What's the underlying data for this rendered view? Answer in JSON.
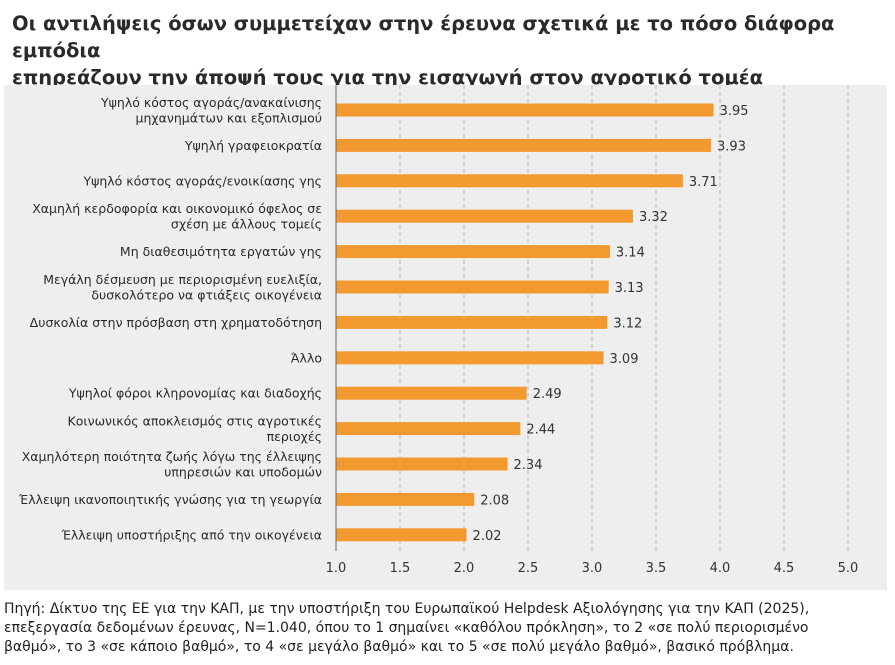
{
  "title_lines": [
    "Οι αντιλήψεις όσων συμμετείχαν στην έρευνα σχετικά με το πόσο διάφορα εμπόδια",
    "επηρεάζουν την άποψή τους για την εισαγωγή στον αγροτικό τομέα"
  ],
  "chart_data": {
    "type": "bar",
    "orientation": "horizontal",
    "title": "Οι αντιλήψεις όσων συμμετείχαν στην έρευνα σχετικά με το πόσο διάφορα εμπόδια επηρεάζουν την άποψή τους για την εισαγωγή στον αγροτικό τομέα",
    "categories": [
      [
        "Υψηλό κόστος αγοράς/ανακαίνισης",
        "μηχανημάτων και εξοπλισμού"
      ],
      [
        "Υψηλή γραφειοκρατία"
      ],
      [
        "Υψηλό κόστος αγοράς/ενοικίασης γης"
      ],
      [
        "Χαμηλή κερδοφορία και οικονομικό όφελος σε",
        "σχέση με άλλους τομείς"
      ],
      [
        "Μη διαθεσιμότητα εργατών γης"
      ],
      [
        "Μεγάλη δέσμευση με περιορισμένη ευελιξία,",
        "δυσκολότερο να φτιάξεις οικογένεια"
      ],
      [
        "Δυσκολία στην πρόσβαση στη χρηματοδότηση"
      ],
      [
        "Άλλο"
      ],
      [
        "Υψηλοί φόροι κληρονομίας και διαδοχής"
      ],
      [
        "Κοινωνικός αποκλεισμός στις αγροτικές",
        "περιοχές"
      ],
      [
        "Χαμηλότερη ποιότητα ζωής λόγω της έλλειψης",
        "υπηρεσιών και υποδομών"
      ],
      [
        "Έλλειψη ικανοποιητικής γνώσης για τη γεωργία"
      ],
      [
        "Έλλειψη υποστήριξης από την οικογένεια"
      ]
    ],
    "values": [
      3.95,
      3.93,
      3.71,
      3.32,
      3.14,
      3.13,
      3.12,
      3.09,
      2.49,
      2.44,
      2.34,
      2.08,
      2.02
    ],
    "value_labels": [
      "3.95",
      "3.93",
      "3.71",
      "3.32",
      "3.14",
      "3.13",
      "3.12",
      "3.09",
      "2.49",
      "2.44",
      "2.34",
      "2.08",
      "2.02"
    ],
    "xlim": [
      1.0,
      5.0
    ],
    "xticks": [
      "1.0",
      "1.5",
      "2.0",
      "2.5",
      "3.0",
      "3.5",
      "4.0",
      "4.5",
      "5.0"
    ],
    "xlabel": "",
    "ylabel": "",
    "grid": "vertical dashed",
    "bar_color": "#f29a30"
  },
  "source_lines": [
    "Πηγή: Δίκτυο της ΕΕ για την ΚΑΠ, με την υποστήριξη του Ευρωπαϊκού Helpdesk Αξιολόγησης για την ΚΑΠ (2025),",
    "επεξεργασία δεδομένων έρευνας, N=1.040, όπου το 1 σημαίνει «καθόλου πρόκληση», το 2 «σε πολύ περιορισμένο",
    "βαθμό», το 3 «σε κάποιο βαθμό», το 4 «σε μεγάλο βαθμό» και το 5 «σε πολύ μεγάλο βαθμό», βασικό πρόβλημα."
  ]
}
